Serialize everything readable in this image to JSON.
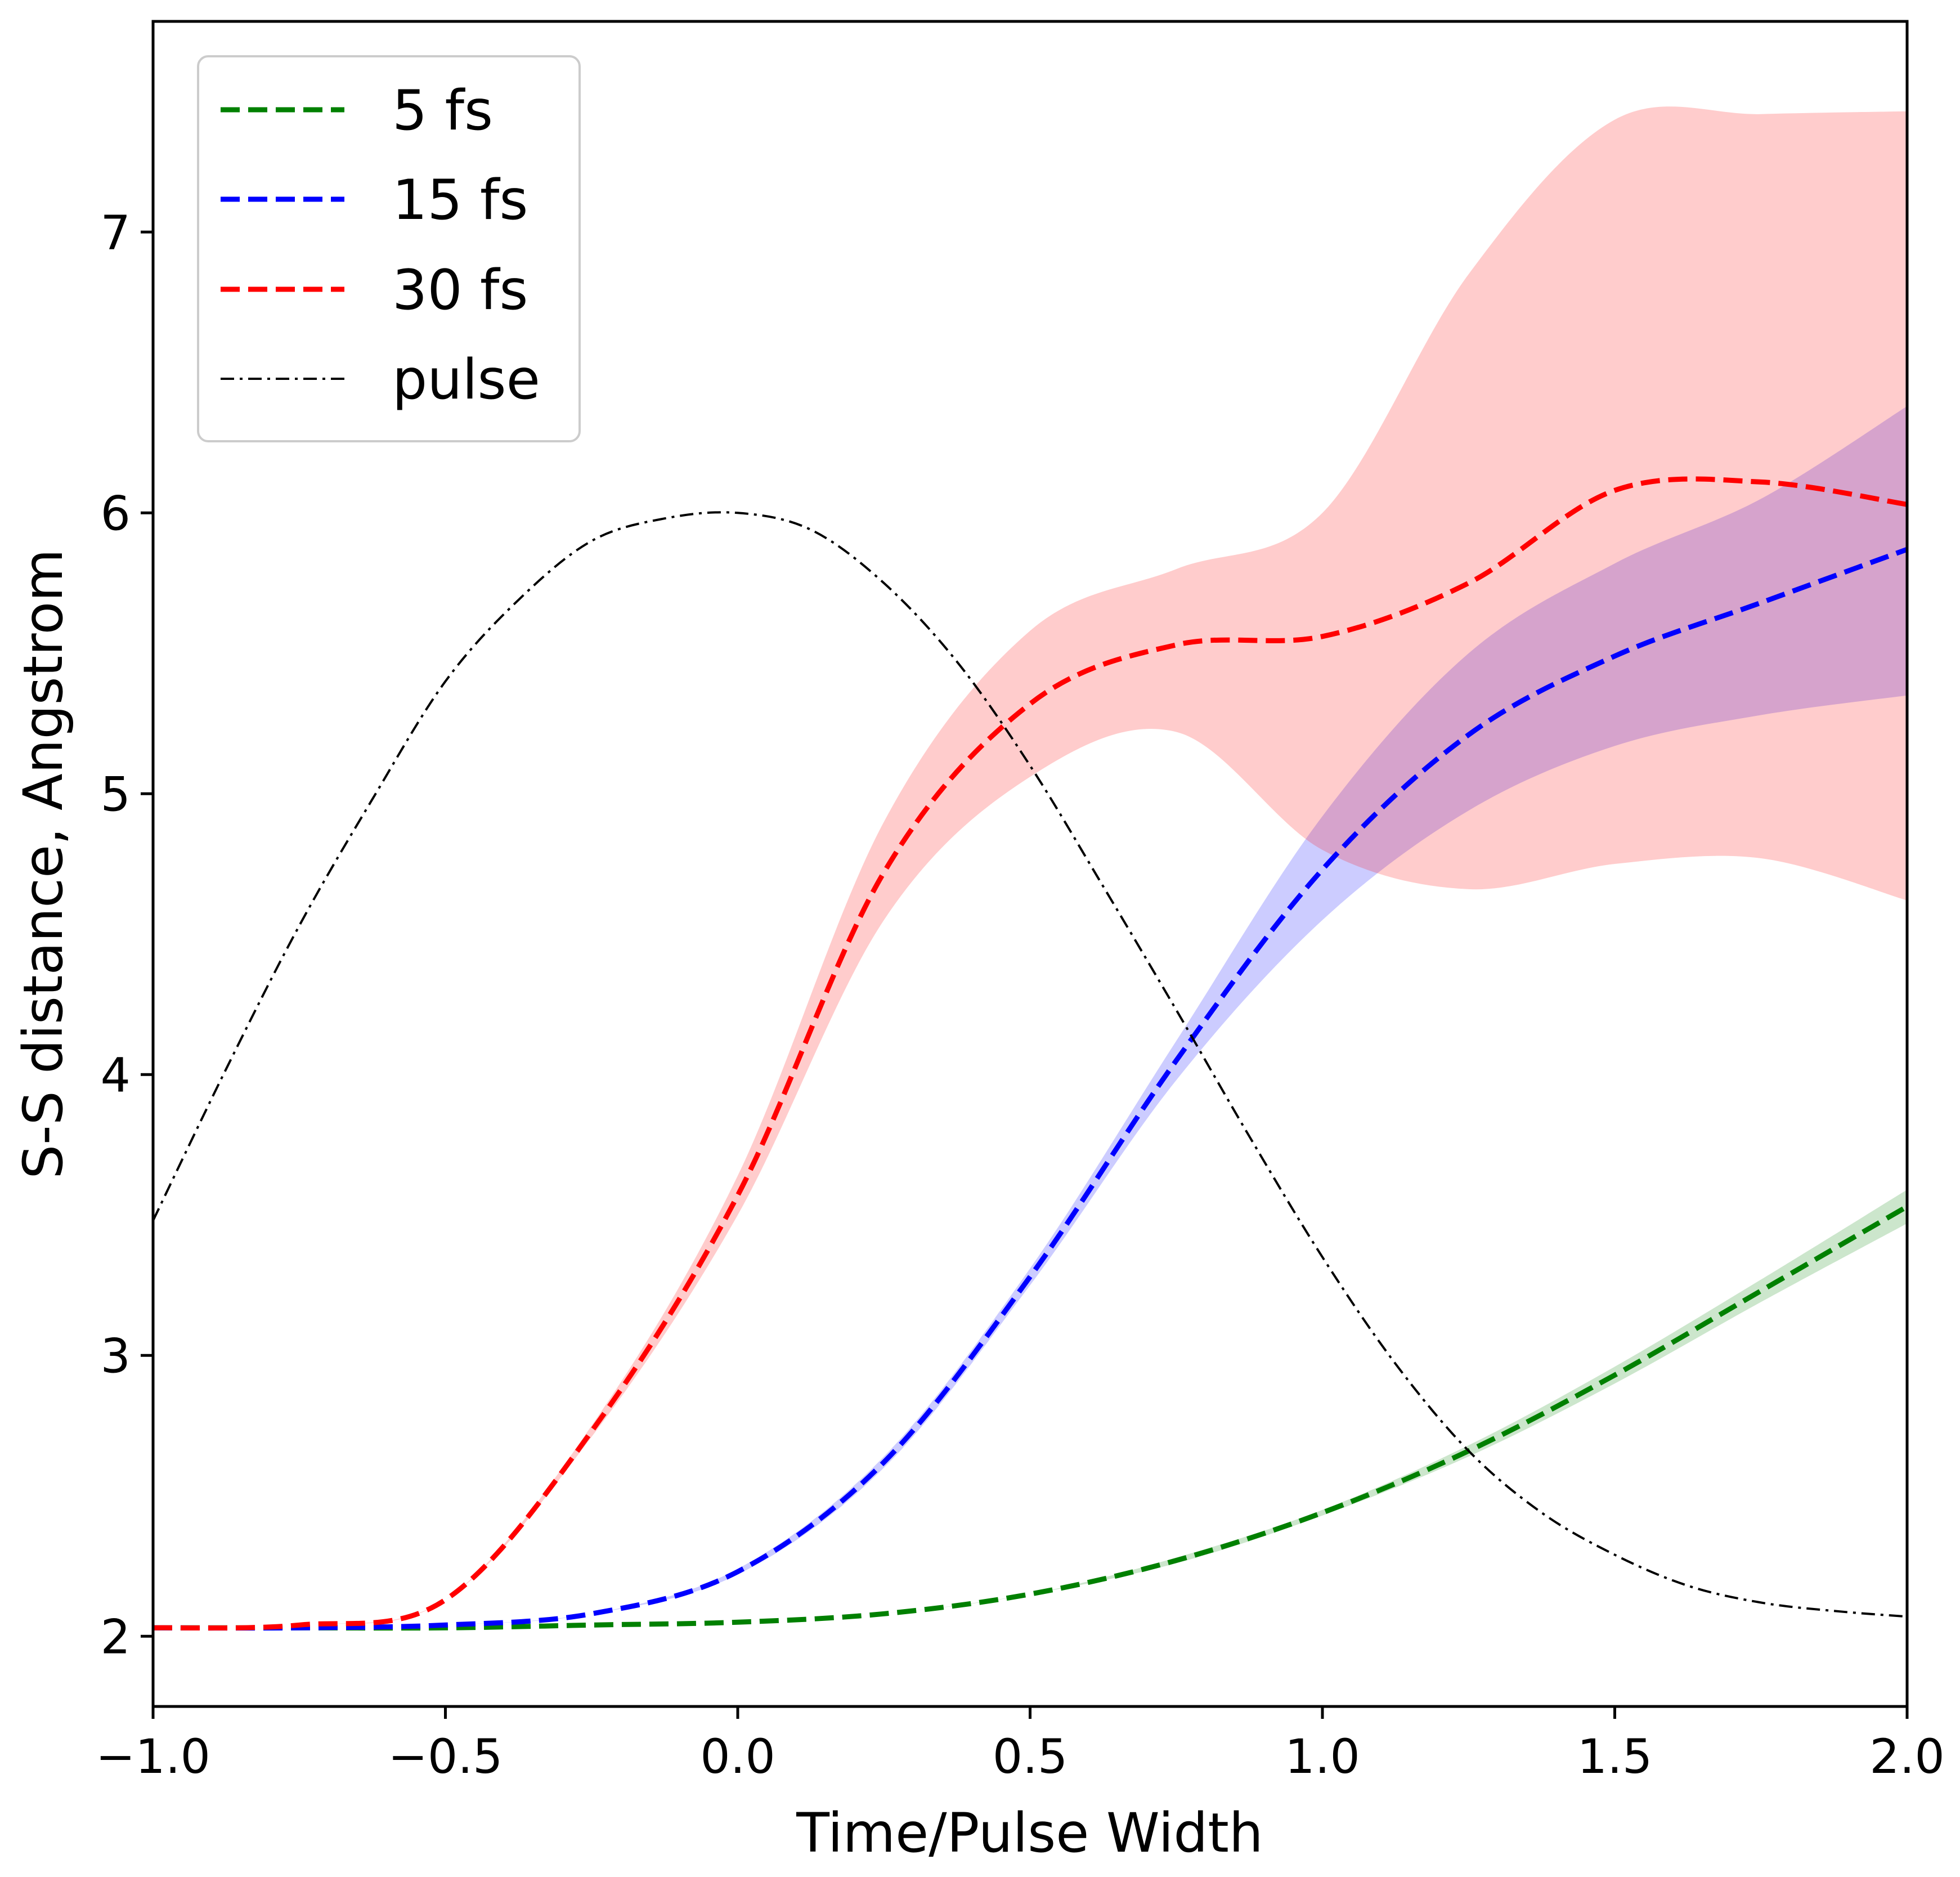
{
  "chart_data": {
    "type": "line",
    "title": "",
    "xlabel": "Time/Pulse Width",
    "ylabel": "S-S distance, Angstrom",
    "xlim": [
      -1.0,
      2.0
    ],
    "ylim": [
      1.75,
      7.75
    ],
    "xticks": [
      -1.0,
      -0.5,
      0.0,
      0.5,
      1.0,
      1.5,
      2.0
    ],
    "xtick_labels": [
      "−1.0",
      "−0.5",
      "0.0",
      "0.5",
      "1.0",
      "1.5",
      "2.0"
    ],
    "yticks": [
      2,
      3,
      4,
      5,
      6,
      7
    ],
    "ytick_labels": [
      "2",
      "3",
      "4",
      "5",
      "6",
      "7"
    ],
    "grid": false,
    "legend_position": "top-left",
    "series": [
      {
        "name": "5 fs",
        "color": "#008000",
        "band_color": "#008000",
        "linestyle": "dashed",
        "x": [
          -1.0,
          -0.75,
          -0.5,
          -0.25,
          0.0,
          0.25,
          0.5,
          0.75,
          1.0,
          1.25,
          1.5,
          1.75,
          2.0
        ],
        "y": [
          2.03,
          2.03,
          2.03,
          2.04,
          2.05,
          2.08,
          2.15,
          2.27,
          2.44,
          2.66,
          2.93,
          3.23,
          3.53
        ],
        "lower": [
          2.03,
          2.03,
          2.03,
          2.04,
          2.05,
          2.08,
          2.15,
          2.26,
          2.43,
          2.64,
          2.9,
          3.19,
          3.47
        ],
        "upper": [
          2.03,
          2.03,
          2.03,
          2.04,
          2.05,
          2.08,
          2.15,
          2.28,
          2.45,
          2.68,
          2.96,
          3.27,
          3.59
        ]
      },
      {
        "name": "15 fs",
        "color": "#0000ff",
        "band_color": "#0000ff",
        "linestyle": "dashed",
        "x": [
          -1.0,
          -0.75,
          -0.5,
          -0.25,
          0.0,
          0.25,
          0.5,
          0.75,
          1.0,
          1.25,
          1.5,
          1.75,
          2.0
        ],
        "y": [
          2.03,
          2.03,
          2.04,
          2.08,
          2.23,
          2.62,
          3.28,
          4.05,
          4.73,
          5.21,
          5.49,
          5.68,
          5.87
        ],
        "lower": [
          2.03,
          2.03,
          2.04,
          2.08,
          2.22,
          2.6,
          3.25,
          3.98,
          4.55,
          4.94,
          5.17,
          5.28,
          5.35
        ],
        "upper": [
          2.03,
          2.03,
          2.04,
          2.08,
          2.24,
          2.64,
          3.31,
          4.12,
          4.92,
          5.5,
          5.82,
          6.05,
          6.38
        ]
      },
      {
        "name": "30 fs",
        "color": "#ff0000",
        "band_color": "#ff0000",
        "linestyle": "dashed",
        "x": [
          -1.0,
          -0.75,
          -0.5,
          -0.25,
          0.0,
          0.25,
          0.5,
          0.75,
          1.0,
          1.25,
          1.5,
          1.75,
          2.0
        ],
        "y": [
          2.03,
          2.04,
          2.13,
          2.73,
          3.57,
          4.72,
          5.32,
          5.53,
          5.56,
          5.75,
          6.08,
          6.11,
          6.03
        ],
        "lower": [
          2.03,
          2.04,
          2.13,
          2.71,
          3.5,
          4.55,
          5.06,
          5.22,
          4.8,
          4.66,
          4.75,
          4.77,
          4.62
        ],
        "upper": [
          2.03,
          2.04,
          2.13,
          2.75,
          3.64,
          4.9,
          5.58,
          5.8,
          6.0,
          6.85,
          7.4,
          7.42,
          7.43
        ]
      },
      {
        "name": "pulse",
        "color": "#000000",
        "linestyle": "dashdot",
        "x": [
          -1.0,
          -0.875,
          -0.75,
          -0.625,
          -0.5,
          -0.375,
          -0.25,
          -0.125,
          0.0,
          0.125,
          0.25,
          0.375,
          0.5,
          0.625,
          0.75,
          0.875,
          1.0,
          1.125,
          1.25,
          1.375,
          1.5,
          1.625,
          1.75,
          1.875,
          2.0
        ],
        "y": [
          3.48,
          4.02,
          4.53,
          4.98,
          5.4,
          5.69,
          5.9,
          5.98,
          6.0,
          5.94,
          5.75,
          5.47,
          5.1,
          4.67,
          4.23,
          3.78,
          3.35,
          2.97,
          2.66,
          2.44,
          2.29,
          2.18,
          2.12,
          2.09,
          2.07
        ]
      }
    ]
  }
}
